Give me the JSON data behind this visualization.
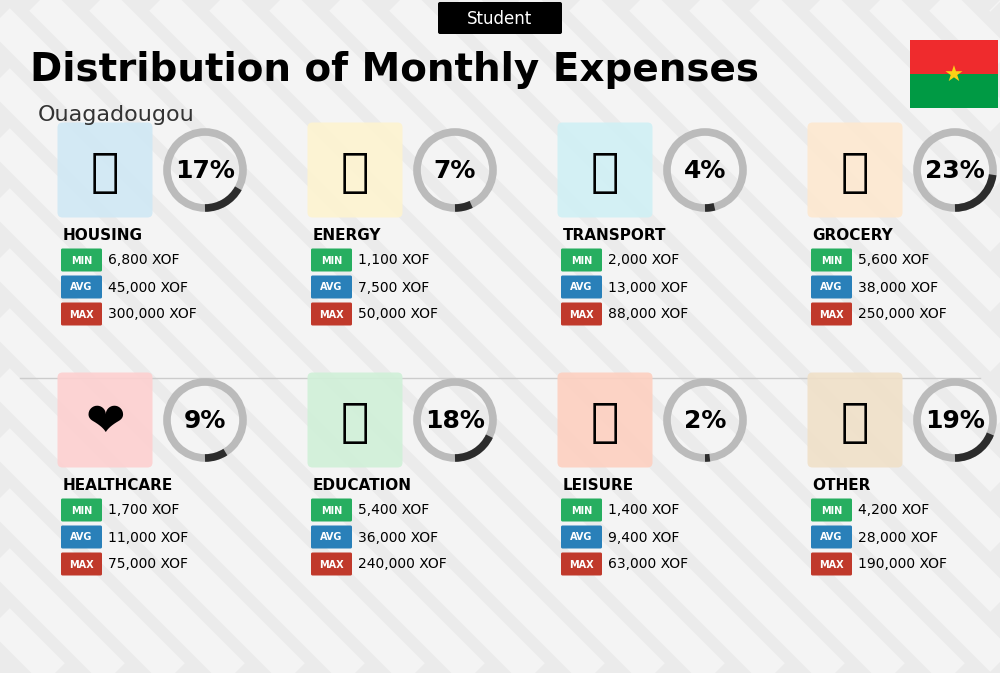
{
  "title": "Distribution of Monthly Expenses",
  "subtitle": "Student",
  "city": "Ouagadougou",
  "bg_color": "#ebebeb",
  "categories": [
    {
      "name": "HOUSING",
      "pct": 17,
      "min": "6,800 XOF",
      "avg": "45,000 XOF",
      "max": "300,000 XOF",
      "row": 0,
      "col": 0
    },
    {
      "name": "ENERGY",
      "pct": 7,
      "min": "1,100 XOF",
      "avg": "7,500 XOF",
      "max": "50,000 XOF",
      "row": 0,
      "col": 1
    },
    {
      "name": "TRANSPORT",
      "pct": 4,
      "min": "2,000 XOF",
      "avg": "13,000 XOF",
      "max": "88,000 XOF",
      "row": 0,
      "col": 2
    },
    {
      "name": "GROCERY",
      "pct": 23,
      "min": "5,600 XOF",
      "avg": "38,000 XOF",
      "max": "250,000 XOF",
      "row": 0,
      "col": 3
    },
    {
      "name": "HEALTHCARE",
      "pct": 9,
      "min": "1,700 XOF",
      "avg": "11,000 XOF",
      "max": "75,000 XOF",
      "row": 1,
      "col": 0
    },
    {
      "name": "EDUCATION",
      "pct": 18,
      "min": "5,400 XOF",
      "avg": "36,000 XOF",
      "max": "240,000 XOF",
      "row": 1,
      "col": 1
    },
    {
      "name": "LEISURE",
      "pct": 2,
      "min": "1,400 XOF",
      "avg": "9,400 XOF",
      "max": "63,000 XOF",
      "row": 1,
      "col": 2
    },
    {
      "name": "OTHER",
      "pct": 19,
      "min": "4,200 XOF",
      "avg": "28,000 XOF",
      "max": "190,000 XOF",
      "row": 1,
      "col": 3
    }
  ],
  "color_min": "#27ae60",
  "color_avg": "#2980b9",
  "color_max": "#c0392b",
  "color_circle_filled": "#2c2c2c",
  "color_circle_bg": "#bbbbbb",
  "title_fontsize": 28,
  "subtitle_fontsize": 12,
  "city_fontsize": 16,
  "pct_fontsize": 18,
  "cat_fontsize": 11,
  "val_fontsize": 10,
  "badge_label_fontsize": 7,
  "stripe_color": "#ffffff",
  "stripe_alpha": 0.45,
  "flag_red": "#ef2b2d",
  "flag_green": "#009a44",
  "flag_star": "#fcd116"
}
